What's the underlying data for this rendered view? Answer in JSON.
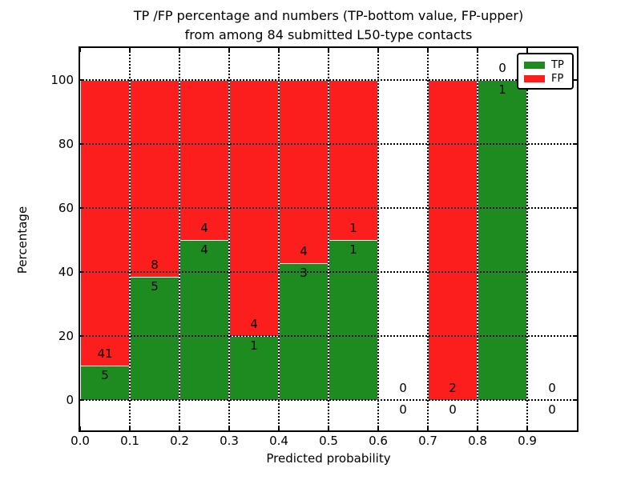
{
  "chart_data": {
    "type": "bar",
    "stacked": true,
    "title_line1": "TP /FP percentage and numbers (TP-bottom value, FP-upper)",
    "title_line2": "from among 84 submitted L50-type contacts",
    "n_total_submitted": 84,
    "xlabel": "Predicted probability",
    "ylabel": "Percentage",
    "xlim": [
      0.0,
      1.0
    ],
    "ylim": [
      -9.5,
      110.5
    ],
    "grid": true,
    "legend_position": "upper right",
    "x_ticks": [
      {
        "value": 0.0,
        "label": "0.0"
      },
      {
        "value": 0.1,
        "label": "0.1"
      },
      {
        "value": 0.2,
        "label": "0.2"
      },
      {
        "value": 0.3,
        "label": "0.3"
      },
      {
        "value": 0.4,
        "label": "0.4"
      },
      {
        "value": 0.5,
        "label": "0.5"
      },
      {
        "value": 0.6,
        "label": "0.6"
      },
      {
        "value": 0.7,
        "label": "0.7"
      },
      {
        "value": 0.8,
        "label": "0.8"
      },
      {
        "value": 0.9,
        "label": "0.9"
      }
    ],
    "y_ticks": [
      {
        "value": 0,
        "label": "0"
      },
      {
        "value": 20,
        "label": "20"
      },
      {
        "value": 40,
        "label": "40"
      },
      {
        "value": 60,
        "label": "60"
      },
      {
        "value": 80,
        "label": "80"
      },
      {
        "value": 100,
        "label": "100"
      }
    ],
    "bins": [
      {
        "x_start": 0.0,
        "x_end": 0.1,
        "tp": 5,
        "fp": 41,
        "tp_pct": 10.87,
        "fp_pct": 89.13
      },
      {
        "x_start": 0.1,
        "x_end": 0.2,
        "tp": 5,
        "fp": 8,
        "tp_pct": 38.46,
        "fp_pct": 61.54
      },
      {
        "x_start": 0.2,
        "x_end": 0.3,
        "tp": 4,
        "fp": 4,
        "tp_pct": 50.0,
        "fp_pct": 50.0
      },
      {
        "x_start": 0.3,
        "x_end": 0.4,
        "tp": 1,
        "fp": 4,
        "tp_pct": 20.0,
        "fp_pct": 80.0
      },
      {
        "x_start": 0.4,
        "x_end": 0.5,
        "tp": 3,
        "fp": 4,
        "tp_pct": 42.86,
        "fp_pct": 57.14
      },
      {
        "x_start": 0.5,
        "x_end": 0.6,
        "tp": 1,
        "fp": 1,
        "tp_pct": 50.0,
        "fp_pct": 50.0
      },
      {
        "x_start": 0.6,
        "x_end": 0.7,
        "tp": 0,
        "fp": 0,
        "tp_pct": 0.0,
        "fp_pct": 0.0
      },
      {
        "x_start": 0.7,
        "x_end": 0.8,
        "tp": 0,
        "fp": 2,
        "tp_pct": 0.0,
        "fp_pct": 100.0
      },
      {
        "x_start": 0.8,
        "x_end": 0.9,
        "tp": 1,
        "fp": 0,
        "tp_pct": 100.0,
        "fp_pct": 0.0
      },
      {
        "x_start": 0.9,
        "x_end": 1.0,
        "tp": 0,
        "fp": 0,
        "tp_pct": 0.0,
        "fp_pct": 0.0
      }
    ],
    "legend": [
      {
        "label": "TP",
        "color": "#1e8b20"
      },
      {
        "label": "FP",
        "color": "#fc1d1d"
      }
    ],
    "colors": {
      "tp": "#1e8b20",
      "fp": "#fc1d1d",
      "grid": "#000000",
      "frame": "#000000"
    }
  }
}
